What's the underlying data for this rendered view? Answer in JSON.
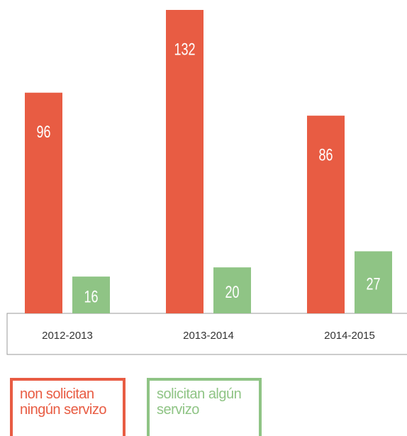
{
  "chart_data": {
    "type": "bar",
    "categories": [
      "2012-2013",
      "2013-2014",
      "2014-2015"
    ],
    "series": [
      {
        "name": "non solicitan ningún servizo",
        "color": "#e85c43",
        "values": [
          96,
          132,
          86
        ]
      },
      {
        "name": "solicitan algún servizo",
        "color": "#8fc485",
        "values": [
          16,
          20,
          27
        ]
      }
    ]
  }
}
